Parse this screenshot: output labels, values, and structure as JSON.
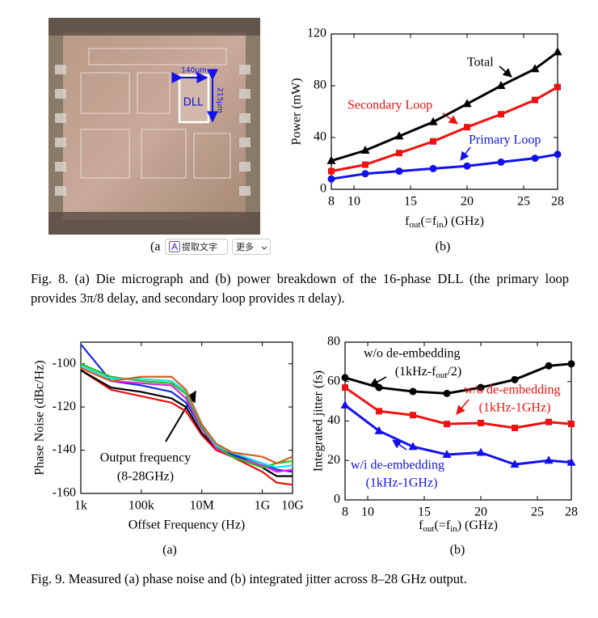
{
  "figure8": {
    "panel_a": {
      "subcaption": "(a",
      "label_width": "140μm",
      "label_height": "215μm",
      "label_block": "DLL"
    },
    "caption": "Fig. 8.  (a) Die micrograph and (b) power breakdown of the 16-phase DLL (the primary loop provides 3π/8 delay, and secondary loop provides π delay)."
  },
  "overlay": {
    "extract_text": "提取文字",
    "more": "更多"
  },
  "figure9": {
    "caption": "Fig. 9.  Measured (a) phase noise and (b) integrated jitter across 8–28 GHz output."
  },
  "chart_data": [
    {
      "type": "line",
      "subcaption": "(b)",
      "ylabel": "Power (mW)",
      "xlabel": [
        "f",
        "out",
        "(=f",
        "in",
        ") (GHz)"
      ],
      "x": [
        8,
        11,
        14,
        17,
        20,
        23,
        26,
        28
      ],
      "xlim": [
        8,
        28
      ],
      "xticks": [
        8,
        10,
        15,
        20,
        25,
        28
      ],
      "ylim": [
        0,
        120
      ],
      "yticks": [
        0,
        40,
        80,
        120
      ],
      "series": [
        {
          "color": "#000000",
          "marker": "triangle",
          "values": [
            22,
            30,
            41,
            52,
            66,
            80,
            93,
            106
          ]
        },
        {
          "color": "#ee1111",
          "marker": "square",
          "values": [
            14,
            19,
            28,
            37,
            48,
            58,
            69,
            79
          ]
        },
        {
          "color": "#1111ee",
          "marker": "circle",
          "values": [
            8,
            12,
            14,
            16,
            18,
            21,
            24,
            27
          ]
        }
      ],
      "annotations": [
        {
          "text": "Total",
          "color": "#000000"
        },
        {
          "text": "Secondary Loop",
          "color": "#ee1111"
        },
        {
          "text": "Primary Loop",
          "color": "#1111ee"
        }
      ]
    },
    {
      "type": "line",
      "subcaption": "(a)",
      "ylabel": "Phase Noise (dBc/Hz)",
      "xlabel": "Offset Frequency (Hz)",
      "xscale": "log",
      "x": [
        1000,
        10000,
        100000,
        1000000,
        3000000,
        10000000,
        30000000,
        100000000,
        1000000000,
        3000000000,
        10000000000
      ],
      "xlim": [
        1000,
        10000000000
      ],
      "xticks": [
        {
          "value": 1000,
          "label": "1k"
        },
        {
          "value": 100000,
          "label": "100k"
        },
        {
          "value": 10000000,
          "label": "10M"
        },
        {
          "value": 1000000000,
          "label": "1G"
        },
        {
          "value": 10000000000,
          "label": "10G"
        }
      ],
      "ylim": [
        -160,
        -90
      ],
      "yticks": [
        -160,
        -140,
        -120,
        -100
      ],
      "series": [
        {
          "color": "#e81010",
          "values": [
            -103,
            -112,
            -115,
            -118,
            -122,
            -133,
            -140,
            -143,
            -150,
            -155,
            -156
          ]
        },
        {
          "color": "#000000",
          "values": [
            -103,
            -111,
            -113,
            -116,
            -120,
            -132,
            -139,
            -142,
            -148,
            -152,
            -152
          ]
        },
        {
          "color": "#1530e0",
          "values": [
            -91,
            -108,
            -110,
            -113,
            -118,
            -130,
            -139,
            -142,
            -146,
            -149,
            -150
          ]
        },
        {
          "color": "#e020e0",
          "values": [
            -102,
            -108,
            -109,
            -110,
            -116,
            -130,
            -139,
            -143,
            -147,
            -150,
            -149
          ]
        },
        {
          "color": "#20c020",
          "values": [
            -100,
            -106,
            -108,
            -109,
            -114,
            -129,
            -138,
            -143,
            -148,
            -146,
            -145
          ]
        },
        {
          "color": "#20e0e0",
          "values": [
            -101,
            -107,
            -107,
            -108,
            -113,
            -128,
            -138,
            -141,
            -146,
            -148,
            -147
          ]
        },
        {
          "color": "#d06020",
          "values": [
            -102,
            -108,
            -106,
            -106,
            -112,
            -128,
            -137,
            -141,
            -143,
            -146,
            -143
          ]
        }
      ],
      "annotations": [
        {
          "text": "Output frequency",
          "color": "#000000"
        },
        {
          "text": "(8-28GHz)",
          "color": "#000000"
        }
      ]
    },
    {
      "type": "line",
      "subcaption": "(b)",
      "ylabel": "Integrated jitter (fs)",
      "xlabel": [
        "f",
        "out",
        "(=f",
        "in",
        ") (GHz)"
      ],
      "x": [
        8,
        11,
        14,
        17,
        20,
        23,
        26,
        28
      ],
      "xlim": [
        8,
        28
      ],
      "xticks": [
        8,
        10,
        15,
        20,
        25,
        28
      ],
      "ylim": [
        0,
        80
      ],
      "yticks": [
        0,
        20,
        40,
        60,
        80
      ],
      "series": [
        {
          "color": "#000000",
          "marker": "circle",
          "values": [
            62,
            57,
            55,
            54,
            57,
            61,
            68,
            69
          ]
        },
        {
          "color": "#ee1111",
          "marker": "square",
          "values": [
            57,
            45,
            43,
            38.5,
            39,
            36.5,
            39.5,
            38.5
          ]
        },
        {
          "color": "#1111ee",
          "marker": "triangle",
          "values": [
            48,
            35,
            27,
            23,
            24,
            18,
            20,
            19
          ]
        }
      ],
      "annotations": [
        {
          "text": "w/o de-embedding",
          "color": "#000000"
        },
        {
          "text": [
            "(1kHz-f",
            "out",
            "/2)"
          ],
          "color": "#000000"
        },
        {
          "text": "w/o de-embedding",
          "color": "#ee1111"
        },
        {
          "text": "(1kHz-1GHz)",
          "color": "#ee1111"
        },
        {
          "text": "w/i de-embedding",
          "color": "#1111ee"
        },
        {
          "text": "(1kHz-1GHz)",
          "color": "#1111ee"
        }
      ]
    }
  ]
}
